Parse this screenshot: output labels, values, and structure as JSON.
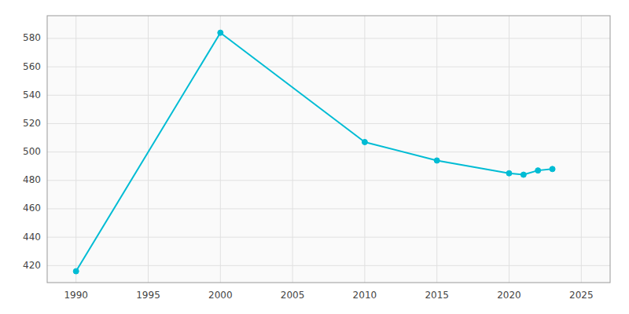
{
  "chart_data": {
    "type": "line",
    "x": [
      1990,
      2000,
      2010,
      2015,
      2020,
      2021,
      2022,
      2023
    ],
    "values": [
      416,
      584,
      507,
      494,
      485,
      484,
      487,
      488
    ],
    "color": "#00BCD4",
    "marker": "circle",
    "xlim": [
      1988,
      2027
    ],
    "ylim": [
      408,
      596
    ],
    "xticks": [
      1990,
      1995,
      2000,
      2005,
      2010,
      2015,
      2020,
      2025
    ],
    "yticks": [
      420,
      440,
      460,
      480,
      500,
      520,
      540,
      560,
      580
    ],
    "grid": true
  }
}
